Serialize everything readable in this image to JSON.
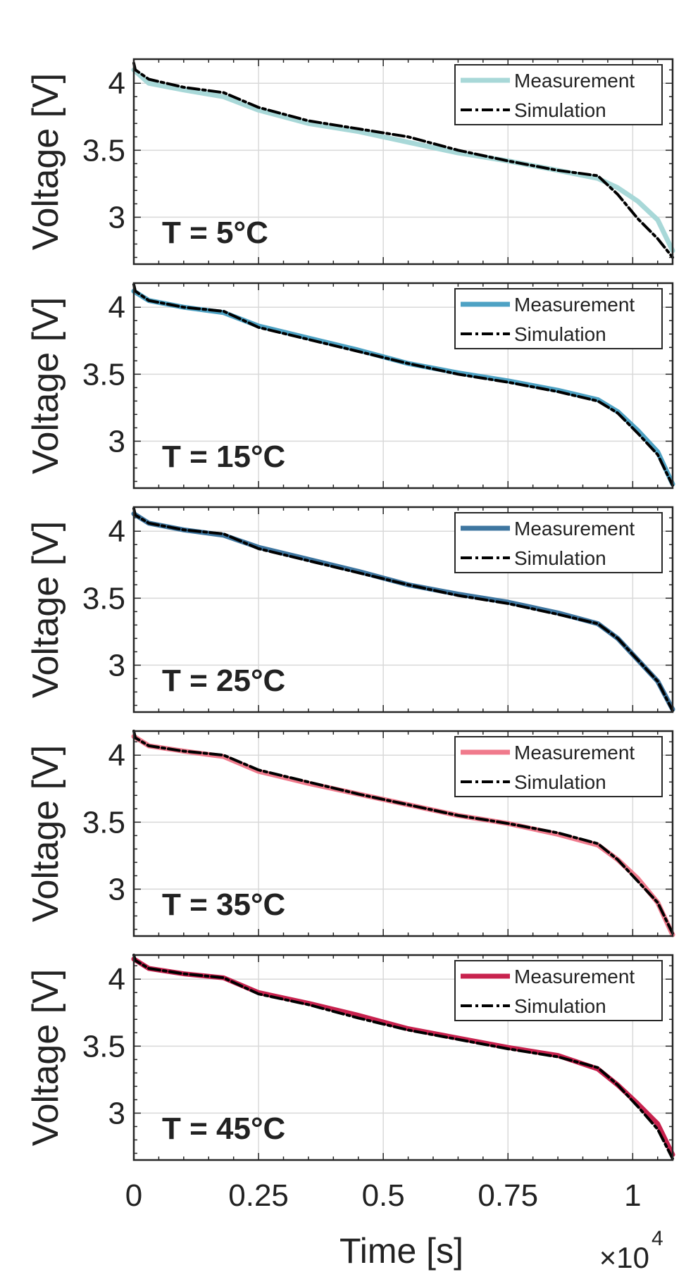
{
  "x_axis": {
    "label": "Time [s]",
    "multiplier": "×10",
    "exponent": "4",
    "ticks": [
      "0",
      "0.25",
      "0.5",
      "0.75",
      "1"
    ]
  },
  "chart_data": [
    {
      "type": "line",
      "annotation": "T = 5°C",
      "ylabel": "Voltage [V]",
      "xlabel": "Time [s]",
      "xlim": [
        0,
        10800
      ],
      "ylim": [
        2.65,
        4.18
      ],
      "yticks": [
        "3",
        "3.5",
        "4"
      ],
      "grid": true,
      "legend": "top-right",
      "colors": {
        "Measurement": "#a8d8d8",
        "Simulation": "#000000"
      },
      "series": [
        {
          "name": "Measurement",
          "x": [
            0,
            300,
            1000,
            1800,
            2500,
            3500,
            4500,
            5500,
            6500,
            7500,
            8500,
            9300,
            9700,
            10100,
            10500,
            10800
          ],
          "y": [
            4.1,
            4.0,
            3.95,
            3.9,
            3.8,
            3.7,
            3.64,
            3.56,
            3.48,
            3.42,
            3.35,
            3.29,
            3.22,
            3.12,
            2.98,
            2.75
          ]
        },
        {
          "name": "Simulation",
          "x": [
            0,
            30,
            300,
            1000,
            1800,
            2500,
            3500,
            4500,
            5500,
            6500,
            7500,
            8500,
            9300,
            9700,
            10100,
            10500,
            10800
          ],
          "y": [
            4.15,
            4.1,
            4.03,
            3.97,
            3.93,
            3.82,
            3.72,
            3.66,
            3.6,
            3.5,
            3.42,
            3.35,
            3.31,
            3.17,
            2.99,
            2.84,
            2.7
          ]
        }
      ]
    },
    {
      "type": "line",
      "annotation": "T = 15°C",
      "ylabel": "Voltage [V]",
      "xlabel": "Time [s]",
      "xlim": [
        0,
        10800
      ],
      "ylim": [
        2.65,
        4.18
      ],
      "yticks": [
        "3",
        "3.5",
        "4"
      ],
      "grid": true,
      "legend": "top-right",
      "colors": {
        "Measurement": "#4ea2c4",
        "Simulation": "#000000"
      },
      "series": [
        {
          "name": "Measurement",
          "x": [
            0,
            300,
            1000,
            1800,
            2500,
            3500,
            4500,
            5500,
            6500,
            7500,
            8500,
            9300,
            9700,
            10100,
            10500,
            10800
          ],
          "y": [
            4.12,
            4.05,
            4.0,
            3.96,
            3.86,
            3.77,
            3.68,
            3.58,
            3.51,
            3.45,
            3.38,
            3.31,
            3.22,
            3.08,
            2.92,
            2.68
          ]
        },
        {
          "name": "Simulation",
          "x": [
            0,
            30,
            300,
            1000,
            1800,
            2500,
            3500,
            4500,
            5500,
            6500,
            7500,
            8500,
            9300,
            9700,
            10100,
            10500,
            10800
          ],
          "y": [
            4.17,
            4.12,
            4.05,
            4.0,
            3.97,
            3.85,
            3.76,
            3.67,
            3.58,
            3.5,
            3.44,
            3.37,
            3.3,
            3.21,
            3.06,
            2.9,
            2.67
          ]
        }
      ]
    },
    {
      "type": "line",
      "annotation": "T = 25°C",
      "ylabel": "Voltage [V]",
      "xlabel": "Time [s]",
      "xlim": [
        0,
        10800
      ],
      "ylim": [
        2.65,
        4.18
      ],
      "yticks": [
        "3",
        "3.5",
        "4"
      ],
      "grid": true,
      "legend": "top-right",
      "colors": {
        "Measurement": "#3e76a0",
        "Simulation": "#000000"
      },
      "series": [
        {
          "name": "Measurement",
          "x": [
            0,
            300,
            1000,
            1800,
            2500,
            3500,
            4500,
            5500,
            6500,
            7500,
            8500,
            9300,
            9700,
            10100,
            10500,
            10800
          ],
          "y": [
            4.13,
            4.06,
            4.01,
            3.97,
            3.88,
            3.79,
            3.7,
            3.6,
            3.53,
            3.47,
            3.39,
            3.31,
            3.2,
            3.04,
            2.88,
            2.67
          ]
        },
        {
          "name": "Simulation",
          "x": [
            0,
            30,
            300,
            1000,
            1800,
            2500,
            3500,
            4500,
            5500,
            6500,
            7500,
            8500,
            9300,
            9700,
            10100,
            10500,
            10800
          ],
          "y": [
            4.17,
            4.12,
            4.06,
            4.01,
            3.98,
            3.87,
            3.78,
            3.69,
            3.6,
            3.52,
            3.46,
            3.38,
            3.31,
            3.2,
            3.04,
            2.88,
            2.66
          ]
        }
      ]
    },
    {
      "type": "line",
      "annotation": "T = 35°C",
      "ylabel": "Voltage [V]",
      "xlabel": "Time [s]",
      "xlim": [
        0,
        10800
      ],
      "ylim": [
        2.65,
        4.18
      ],
      "yticks": [
        "3",
        "3.5",
        "4"
      ],
      "grid": true,
      "legend": "top-right",
      "colors": {
        "Measurement": "#f07a8c",
        "Simulation": "#000000"
      },
      "series": [
        {
          "name": "Measurement",
          "x": [
            0,
            300,
            1000,
            1800,
            2500,
            3500,
            4500,
            5500,
            6500,
            7500,
            8500,
            9300,
            9700,
            10100,
            10500,
            10800
          ],
          "y": [
            4.14,
            4.07,
            4.03,
            3.99,
            3.88,
            3.79,
            3.71,
            3.63,
            3.55,
            3.49,
            3.41,
            3.33,
            3.22,
            3.08,
            2.9,
            2.66
          ]
        },
        {
          "name": "Simulation",
          "x": [
            0,
            30,
            300,
            1000,
            1800,
            2500,
            3500,
            4500,
            5500,
            6500,
            7500,
            8500,
            9300,
            9700,
            10100,
            10500,
            10800
          ],
          "y": [
            4.18,
            4.13,
            4.07,
            4.03,
            4.0,
            3.89,
            3.8,
            3.71,
            3.63,
            3.55,
            3.49,
            3.42,
            3.34,
            3.22,
            3.06,
            2.9,
            2.67
          ]
        }
      ]
    },
    {
      "type": "line",
      "annotation": "T = 45°C",
      "ylabel": "Voltage [V]",
      "xlabel": "Time [s]",
      "xlim": [
        0,
        10800
      ],
      "ylim": [
        2.65,
        4.18
      ],
      "yticks": [
        "3",
        "3.5",
        "4"
      ],
      "grid": true,
      "legend": "top-right",
      "colors": {
        "Measurement": "#c8224e",
        "Simulation": "#000000"
      },
      "series": [
        {
          "name": "Measurement",
          "x": [
            0,
            300,
            1000,
            1800,
            2500,
            3500,
            4500,
            5500,
            6500,
            7500,
            8500,
            9300,
            9700,
            10100,
            10500,
            10800
          ],
          "y": [
            4.15,
            4.08,
            4.04,
            4.01,
            3.9,
            3.82,
            3.73,
            3.63,
            3.56,
            3.49,
            3.43,
            3.33,
            3.21,
            3.07,
            2.92,
            2.69
          ]
        },
        {
          "name": "Simulation",
          "x": [
            0,
            30,
            300,
            1000,
            1800,
            2500,
            3500,
            4500,
            5500,
            6500,
            7500,
            8500,
            9300,
            9700,
            10100,
            10500,
            10800
          ],
          "y": [
            4.18,
            4.14,
            4.08,
            4.04,
            4.01,
            3.89,
            3.81,
            3.71,
            3.62,
            3.55,
            3.48,
            3.42,
            3.34,
            3.21,
            3.05,
            2.88,
            2.66
          ]
        }
      ]
    }
  ]
}
